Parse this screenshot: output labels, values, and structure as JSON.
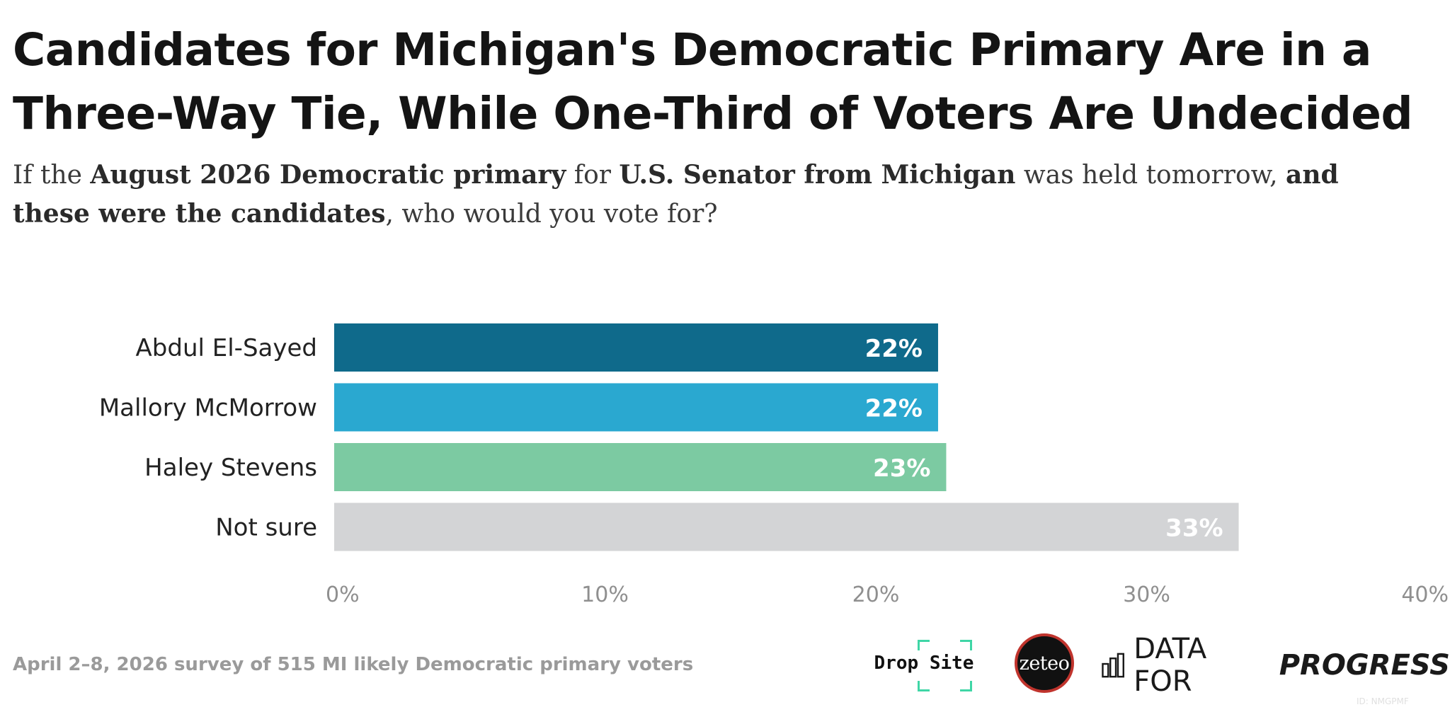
{
  "title": "Candidates for Michigan's Democratic Primary Are in a Three-Way Tie, While One-Third of Voters Are Undecided",
  "subtitle": {
    "p1": "If the ",
    "b1": "August 2026 Democratic primary",
    "p2": " for ",
    "b2": "U.S. Senator from Michigan",
    "p3": " was held tomorrow, ",
    "b3": "and these were the candidates",
    "p4": ", who would you vote for?"
  },
  "chart_data": {
    "type": "bar",
    "orientation": "horizontal",
    "categories": [
      "Abdul El-Sayed",
      "Mallory McMorrow",
      "Haley Stevens",
      "Not sure"
    ],
    "values": [
      22.3,
      22.3,
      22.6,
      33.4
    ],
    "value_labels": [
      "22%",
      "22%",
      "23%",
      "33%"
    ],
    "colors": [
      "#0f6a8b",
      "#2aa8d0",
      "#7ccaa2",
      "#d3d4d6"
    ],
    "xlim": [
      0,
      40
    ],
    "xticks": [
      0,
      10,
      20,
      30,
      40
    ],
    "xtick_labels": [
      "0%",
      "10%",
      "20%",
      "30%",
      "40%"
    ],
    "grid": false,
    "legend": "none"
  },
  "footer": {
    "source": "April 2–8, 2026 survey of 515 MI likely Democratic primary voters",
    "logo_dropsite": "Drop Site",
    "logo_zeteo": "zeteo",
    "logo_dfp_regular": "DATA FOR",
    "logo_dfp_bold": "PROGRESS",
    "chart_id": "ID: NMGPMF"
  }
}
